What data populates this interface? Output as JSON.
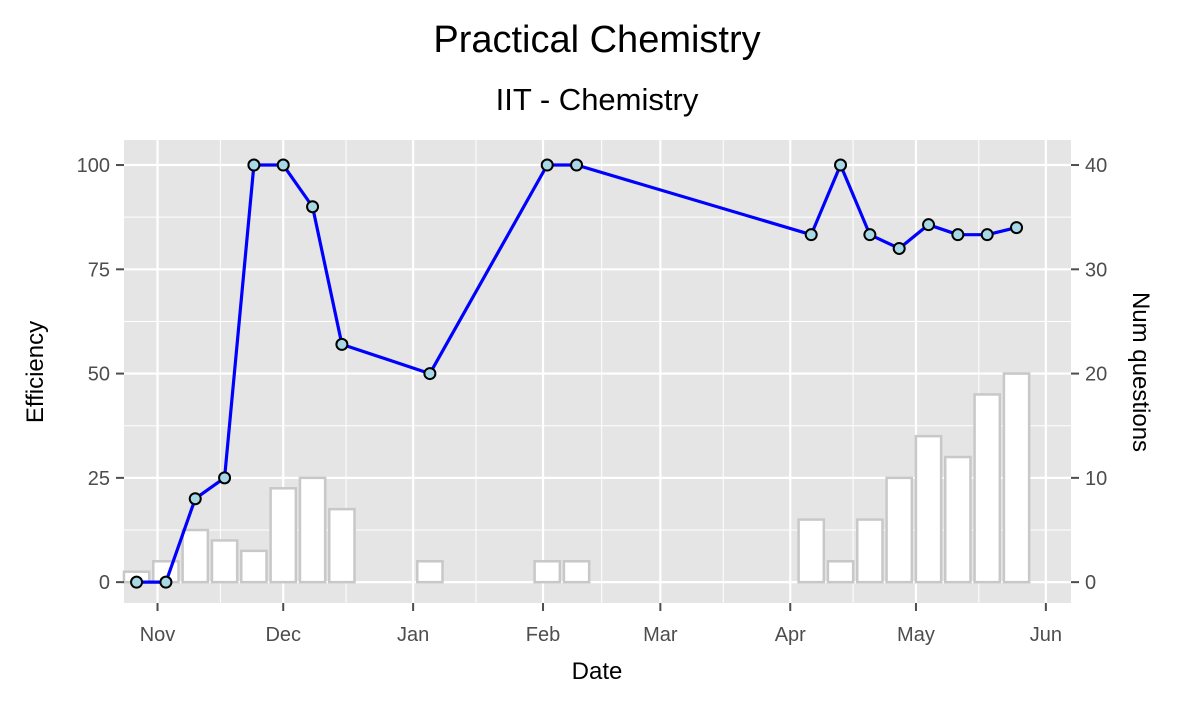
{
  "chart_data": {
    "type": "line",
    "title": "Practical Chemistry",
    "subtitle": "IIT - Chemistry",
    "xlabel": "Date",
    "ylabel": "Efficiency",
    "y2label": "Num questions",
    "xlim": [
      "2017-10-24",
      "2018-06-07"
    ],
    "ylim": [
      -5,
      106
    ],
    "y2lim": [
      -2,
      42.4
    ],
    "x_ticks": [
      {
        "date": "2017-11-01",
        "label": "Nov"
      },
      {
        "date": "2017-12-01",
        "label": "Dec"
      },
      {
        "date": "2018-01-01",
        "label": "Jan"
      },
      {
        "date": "2018-02-01",
        "label": "Feb"
      },
      {
        "date": "2018-03-01",
        "label": "Mar"
      },
      {
        "date": "2018-04-01",
        "label": "Apr"
      },
      {
        "date": "2018-05-01",
        "label": "May"
      },
      {
        "date": "2018-06-01",
        "label": "Jun"
      }
    ],
    "y_ticks": [
      0,
      25,
      50,
      75,
      100
    ],
    "y2_ticks": [
      0,
      10,
      20,
      30,
      40
    ],
    "grid": true,
    "colors": {
      "panel": "#e5e5e5",
      "grid": "#ffffff",
      "line": "#0000ff",
      "point_fill": "#a6d8e6",
      "bar_fill": "#ffffff",
      "bar_stroke": "#c8c8c8",
      "tick": "#4d4d4d"
    },
    "series": [
      {
        "type": "line",
        "axis": "left",
        "x": [
          "2017-10-27",
          "2017-11-03",
          "2017-11-10",
          "2017-11-17",
          "2017-11-24",
          "2017-12-01",
          "2017-12-08",
          "2017-12-15",
          "2018-01-05",
          "2018-02-02",
          "2018-02-09",
          "2018-04-06",
          "2018-04-13",
          "2018-04-20",
          "2018-04-27",
          "2018-05-04",
          "2018-05-11",
          "2018-05-18",
          "2018-05-25"
        ],
        "values": [
          0,
          0,
          20,
          25,
          100,
          100,
          90,
          57,
          50,
          100,
          100,
          83.3,
          100,
          83.3,
          80,
          85.7,
          83.3,
          83.3,
          85
        ]
      },
      {
        "type": "bar",
        "axis": "right",
        "x": [
          "2017-10-27",
          "2017-11-03",
          "2017-11-10",
          "2017-11-17",
          "2017-11-24",
          "2017-12-01",
          "2017-12-08",
          "2017-12-15",
          "2018-01-05",
          "2018-02-02",
          "2018-02-09",
          "2018-04-06",
          "2018-04-13",
          "2018-04-20",
          "2018-04-27",
          "2018-05-04",
          "2018-05-11",
          "2018-05-18",
          "2018-05-25"
        ],
        "values": [
          1,
          2,
          5,
          4,
          3,
          9,
          10,
          7,
          2,
          2,
          2,
          6,
          2,
          6,
          10,
          14,
          12,
          18,
          20
        ]
      }
    ]
  }
}
